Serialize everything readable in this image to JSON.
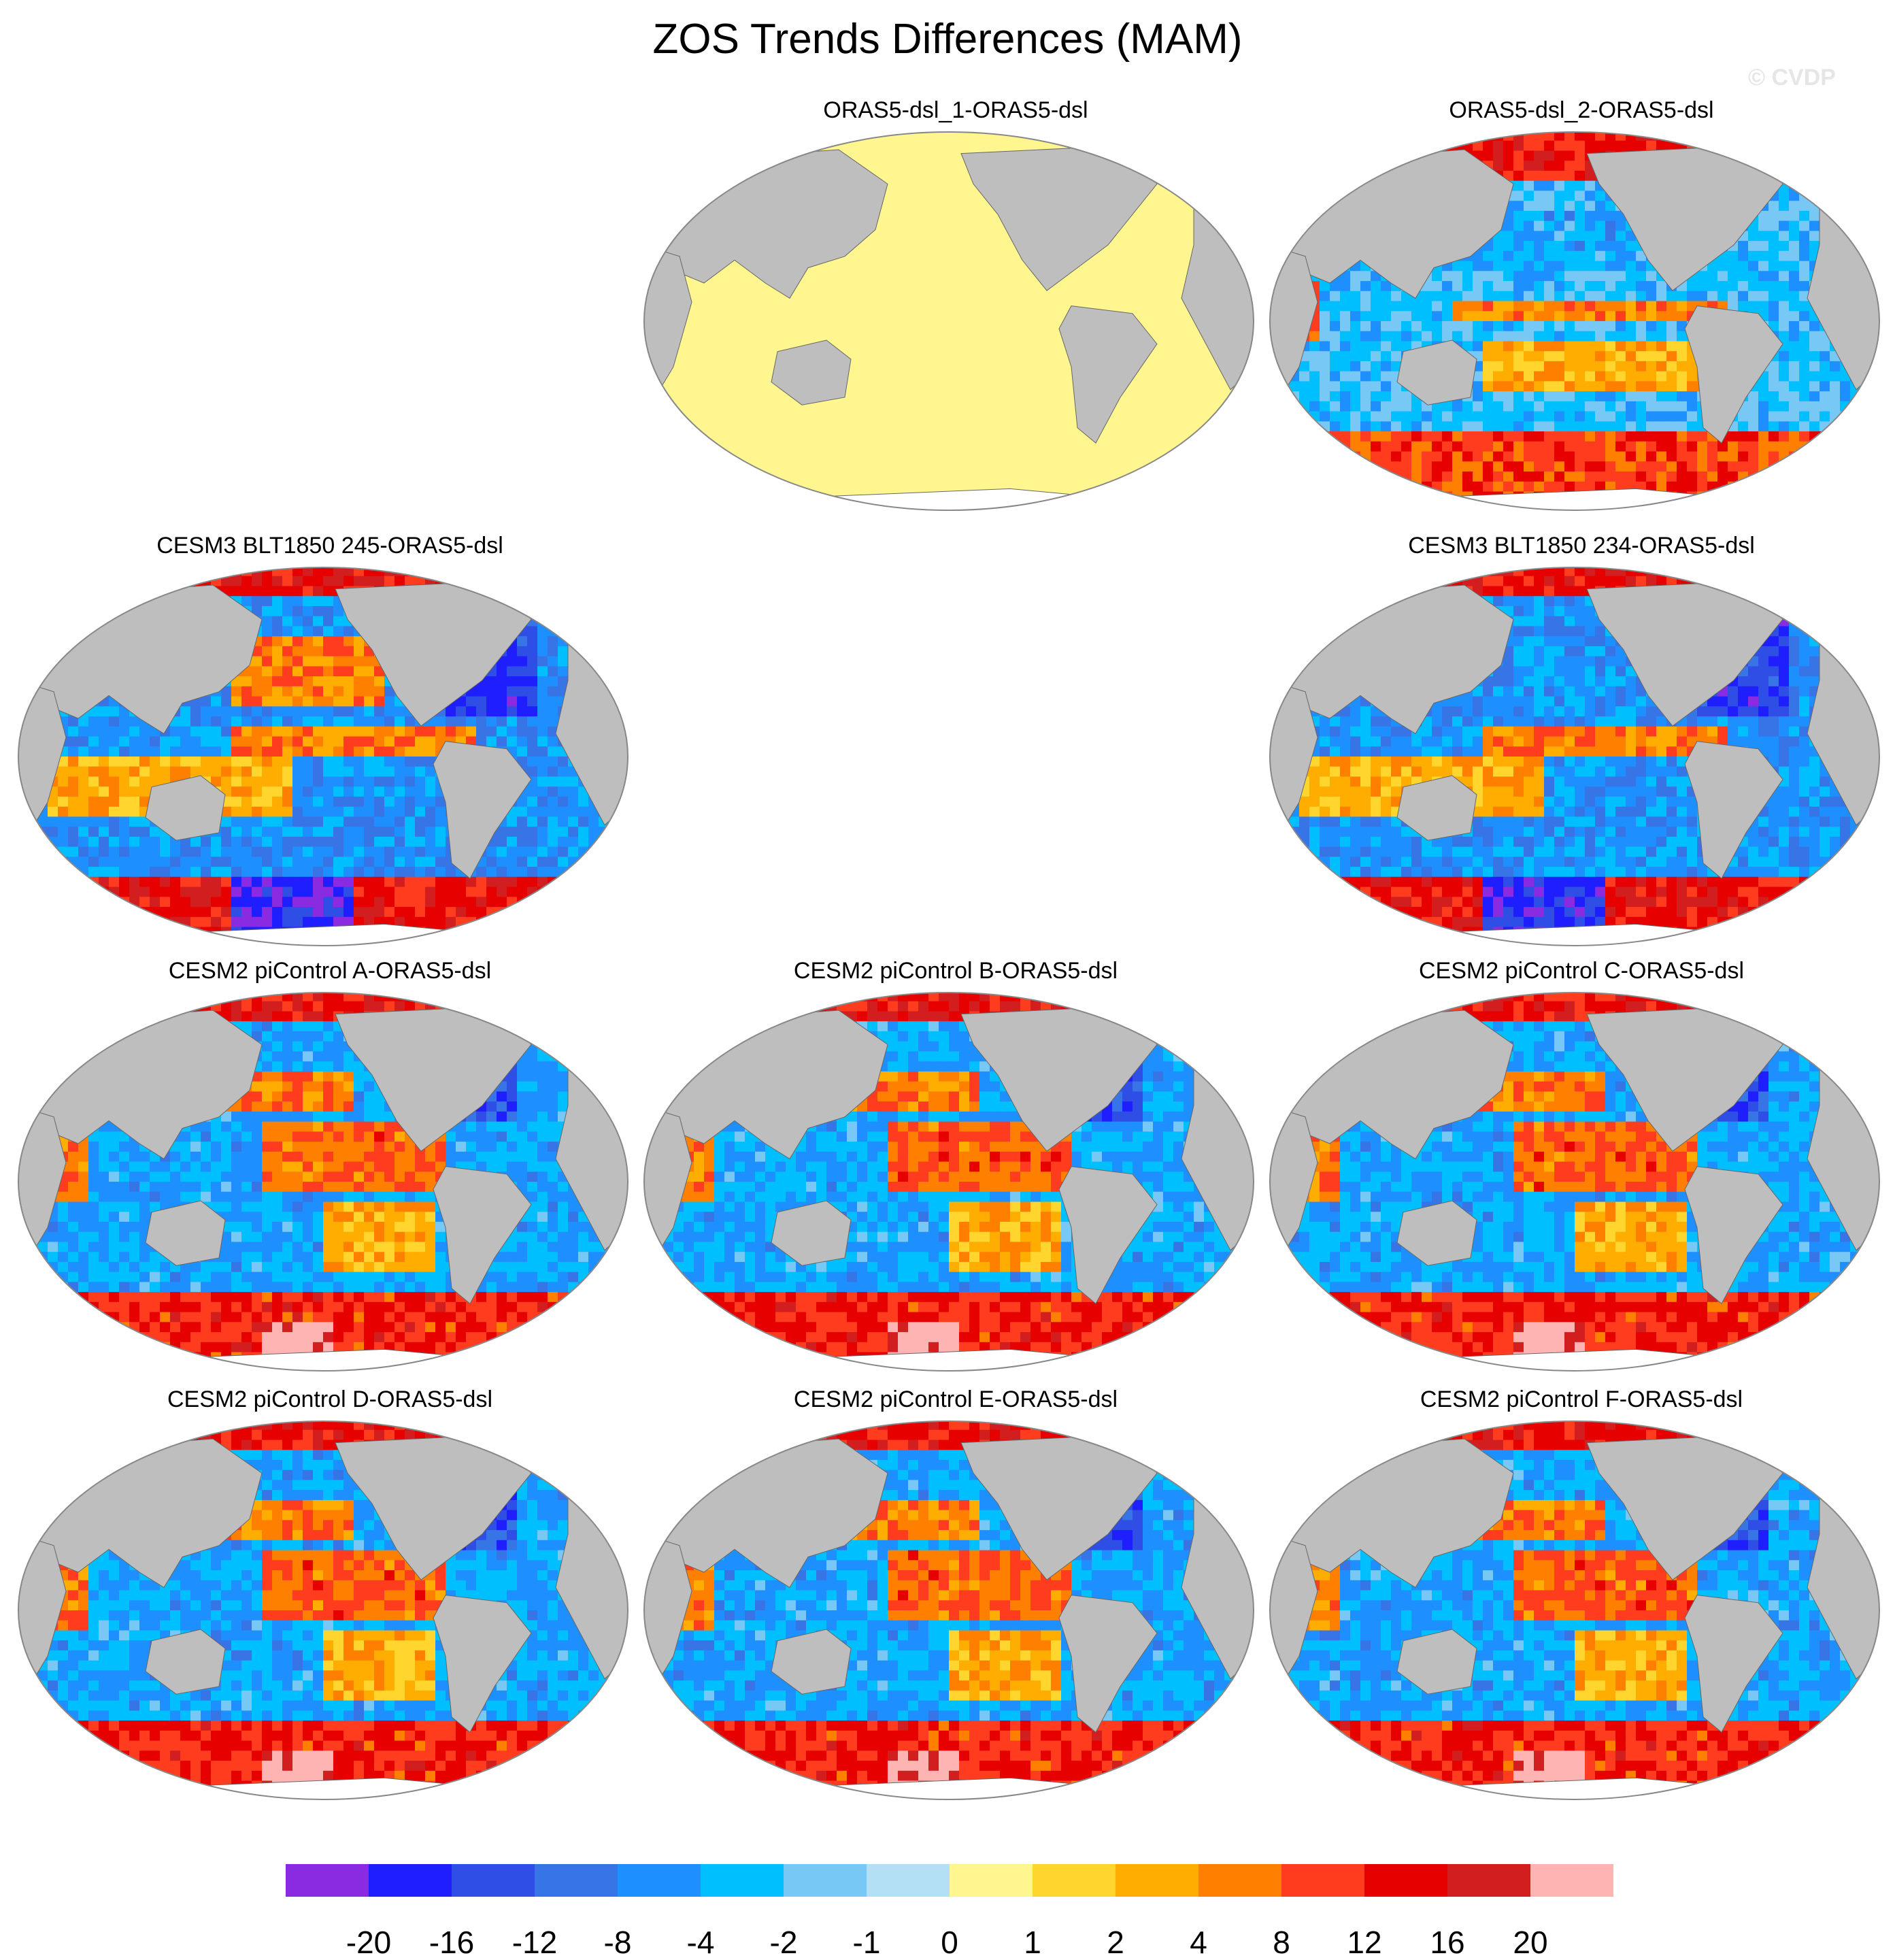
{
  "title": "ZOS Trends Differences (MAM)",
  "watermark": "© CVDP",
  "colors": {
    "land": "#bebebe",
    "zero": "#fff68f",
    "outline": "#888888"
  },
  "panels": [
    {
      "id": "p0",
      "title": "ORAS5-dsl_1-ORAS5-dsl",
      "row": 0,
      "col": 1,
      "pattern": "zero"
    },
    {
      "id": "p1",
      "title": "ORAS5-dsl_2-ORAS5-dsl",
      "row": 0,
      "col": 2,
      "pattern": "oras"
    },
    {
      "id": "p2",
      "title": "CESM3 BLT1850 245-ORAS5-dsl",
      "row": 1,
      "col": 0,
      "pattern": "cesm3a"
    },
    {
      "id": "p3",
      "title": "CESM3 BLT1850 234-ORAS5-dsl",
      "row": 1,
      "col": 2,
      "pattern": "cesm3b"
    },
    {
      "id": "p4",
      "title": "CESM2 piControl A-ORAS5-dsl",
      "row": 2,
      "col": 0,
      "pattern": "cesm2"
    },
    {
      "id": "p5",
      "title": "CESM2 piControl B-ORAS5-dsl",
      "row": 2,
      "col": 1,
      "pattern": "cesm2"
    },
    {
      "id": "p6",
      "title": "CESM2 piControl C-ORAS5-dsl",
      "row": 2,
      "col": 2,
      "pattern": "cesm2"
    },
    {
      "id": "p7",
      "title": "CESM2 piControl D-ORAS5-dsl",
      "row": 3,
      "col": 0,
      "pattern": "cesm2"
    },
    {
      "id": "p8",
      "title": "CESM2 piControl E-ORAS5-dsl",
      "row": 3,
      "col": 1,
      "pattern": "cesm2"
    },
    {
      "id": "p9",
      "title": "CESM2 piControl F-ORAS5-dsl",
      "row": 3,
      "col": 2,
      "pattern": "cesm2"
    }
  ],
  "colorbar": {
    "colors": [
      "#8a2be2",
      "#1e1eff",
      "#2e4ee6",
      "#3775e6",
      "#1e8fff",
      "#00bfff",
      "#78c8f5",
      "#b4e0f5",
      "#fff68f",
      "#ffd52e",
      "#ffad00",
      "#ff7f00",
      "#ff3c1e",
      "#e60000",
      "#d21e1e",
      "#ffb4b4"
    ],
    "labels": [
      "-20",
      "-16",
      "-12",
      "-8",
      "-4",
      "-2",
      "-1",
      "0",
      "1",
      "2",
      "4",
      "8",
      "12",
      "16",
      "20"
    ]
  }
}
